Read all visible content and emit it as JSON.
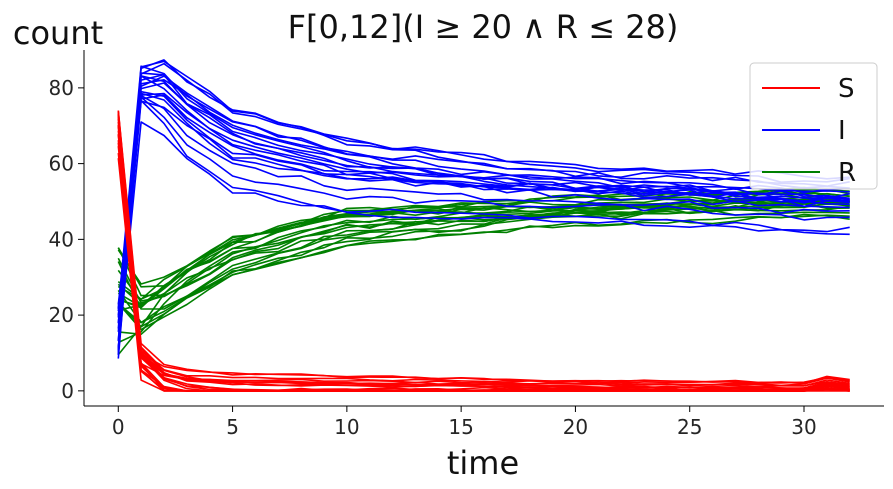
{
  "chart_data": {
    "type": "line",
    "title": "F[0,12](I ≥ 20 ∧ R ≤ 28)",
    "xlabel": "time",
    "ylabel": "count",
    "xlim": [
      -1.5,
      33.5
    ],
    "ylim": [
      -4,
      90
    ],
    "xticks": [
      0,
      5,
      10,
      15,
      20,
      25,
      30
    ],
    "yticks": [
      0,
      20,
      40,
      60,
      80
    ],
    "grid": false,
    "legend_position": "top-right",
    "colors": {
      "S": "#ff0000",
      "I": "#0000ff",
      "R": "#008000"
    },
    "series": [
      {
        "name": "S",
        "description": "approximately 20 trajectories: start near 60–76 at t=0, collapse to about 0–10 by t≈1, then stay near 0–2 through t=32",
        "x": [
          0,
          1,
          2,
          3,
          5,
          10,
          15,
          20,
          25,
          30,
          31,
          32
        ],
        "values": [
          68,
          8,
          3,
          1.5,
          0.8,
          0.8,
          0.8,
          0.8,
          0.8,
          0.5,
          2,
          1
        ]
      },
      {
        "name": "I",
        "description": "approximately 20 trajectories: start near 8–25 at t=0, peak about 55–86 at t≈1–2, then decay toward about 46–53 by t=32",
        "x": [
          0,
          1,
          2,
          3,
          5,
          10,
          15,
          20,
          25,
          30,
          32
        ],
        "values": [
          15,
          80,
          79,
          73,
          65,
          58,
          55,
          53,
          52,
          50,
          50
        ]
      },
      {
        "name": "R",
        "description": "approximately 20 trajectories: start near 5–40 at t=0, dip near t≈1, then rise toward about 46–52 by t=32",
        "x": [
          0,
          1,
          2,
          3,
          5,
          10,
          15,
          20,
          25,
          30,
          32
        ],
        "values": [
          25,
          20,
          24,
          28,
          35,
          43,
          45,
          47,
          48,
          49,
          49
        ]
      }
    ]
  }
}
